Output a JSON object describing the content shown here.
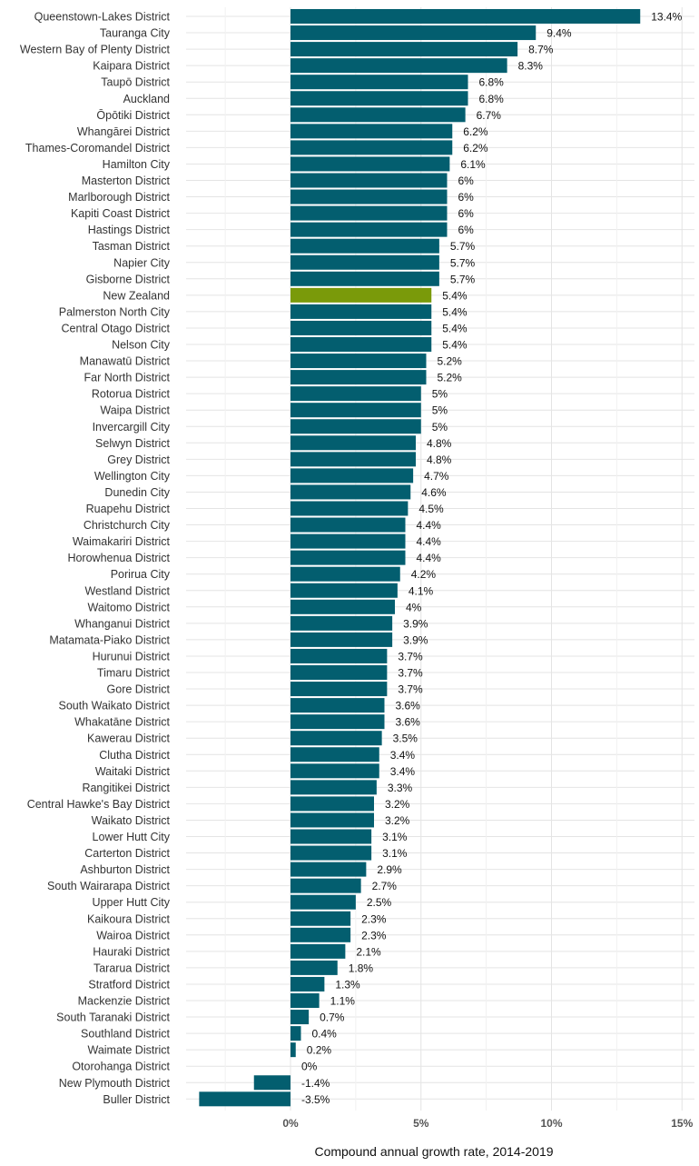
{
  "chart_data": {
    "type": "bar",
    "orientation": "horizontal",
    "title": "",
    "xlabel": "Compound annual growth rate, 2014-2019",
    "ylabel": "",
    "xlim": [
      -3.5,
      15
    ],
    "xticks": [
      0,
      5,
      10,
      15
    ],
    "xtick_labels": [
      "0%",
      "5%",
      "10%",
      "15%"
    ],
    "grid": true,
    "legend": "none",
    "colors": {
      "default": "#035e6f",
      "highlight": "#7a9a0a"
    },
    "highlight_category": "New Zealand",
    "categories": [
      "Queenstown-Lakes District",
      "Tauranga City",
      "Western Bay of Plenty District",
      "Kaipara District",
      "Taupō District",
      "Auckland",
      "Ōpōtiki District",
      "Whangārei District",
      "Thames-Coromandel District",
      "Hamilton City",
      "Masterton District",
      "Marlborough District",
      "Kapiti Coast District",
      "Hastings District",
      "Tasman District",
      "Napier City",
      "Gisborne District",
      "New Zealand",
      "Palmerston North City",
      "Central Otago District",
      "Nelson City",
      "Manawatū District",
      "Far North District",
      "Rotorua District",
      "Waipa District",
      "Invercargill City",
      "Selwyn District",
      "Grey District",
      "Wellington City",
      "Dunedin City",
      "Ruapehu District",
      "Christchurch City",
      "Waimakariri District",
      "Horowhenua District",
      "Porirua City",
      "Westland District",
      "Waitomo District",
      "Whanganui District",
      "Matamata-Piako District",
      "Hurunui District",
      "Timaru District",
      "Gore District",
      "South Waikato District",
      "Whakatāne District",
      "Kawerau District",
      "Clutha District",
      "Waitaki District",
      "Rangitikei District",
      "Central Hawke's Bay District",
      "Waikato District",
      "Lower Hutt City",
      "Carterton District",
      "Ashburton District",
      "South Wairarapa District",
      "Upper Hutt City",
      "Kaikoura District",
      "Wairoa District",
      "Hauraki District",
      "Tararua District",
      "Stratford District",
      "Mackenzie District",
      "South Taranaki District",
      "Southland District",
      "Waimate District",
      "Otorohanga District",
      "New Plymouth District",
      "Buller District"
    ],
    "values": [
      13.4,
      9.4,
      8.7,
      8.3,
      6.8,
      6.8,
      6.7,
      6.2,
      6.2,
      6.1,
      6.0,
      6.0,
      6.0,
      6.0,
      5.7,
      5.7,
      5.7,
      5.4,
      5.4,
      5.4,
      5.4,
      5.2,
      5.2,
      5.0,
      5.0,
      5.0,
      4.8,
      4.8,
      4.7,
      4.6,
      4.5,
      4.4,
      4.4,
      4.4,
      4.2,
      4.1,
      4.0,
      3.9,
      3.9,
      3.7,
      3.7,
      3.7,
      3.6,
      3.6,
      3.5,
      3.4,
      3.4,
      3.3,
      3.2,
      3.2,
      3.1,
      3.1,
      2.9,
      2.7,
      2.5,
      2.3,
      2.3,
      2.1,
      1.8,
      1.3,
      1.1,
      0.7,
      0.4,
      0.2,
      0.0,
      -1.4,
      -3.5
    ],
    "value_labels": [
      "13.4%",
      "9.4%",
      "8.7%",
      "8.3%",
      "6.8%",
      "6.8%",
      "6.7%",
      "6.2%",
      "6.2%",
      "6.1%",
      "6%",
      "6%",
      "6%",
      "6%",
      "5.7%",
      "5.7%",
      "5.7%",
      "5.4%",
      "5.4%",
      "5.4%",
      "5.4%",
      "5.2%",
      "5.2%",
      "5%",
      "5%",
      "5%",
      "4.8%",
      "4.8%",
      "4.7%",
      "4.6%",
      "4.5%",
      "4.4%",
      "4.4%",
      "4.4%",
      "4.2%",
      "4.1%",
      "4%",
      "3.9%",
      "3.9%",
      "3.7%",
      "3.7%",
      "3.7%",
      "3.6%",
      "3.6%",
      "3.5%",
      "3.4%",
      "3.4%",
      "3.3%",
      "3.2%",
      "3.2%",
      "3.1%",
      "3.1%",
      "2.9%",
      "2.7%",
      "2.5%",
      "2.3%",
      "2.3%",
      "2.1%",
      "1.8%",
      "1.3%",
      "1.1%",
      "0.7%",
      "0.4%",
      "0.2%",
      "0%",
      "-1.4%",
      "-3.5%"
    ]
  }
}
